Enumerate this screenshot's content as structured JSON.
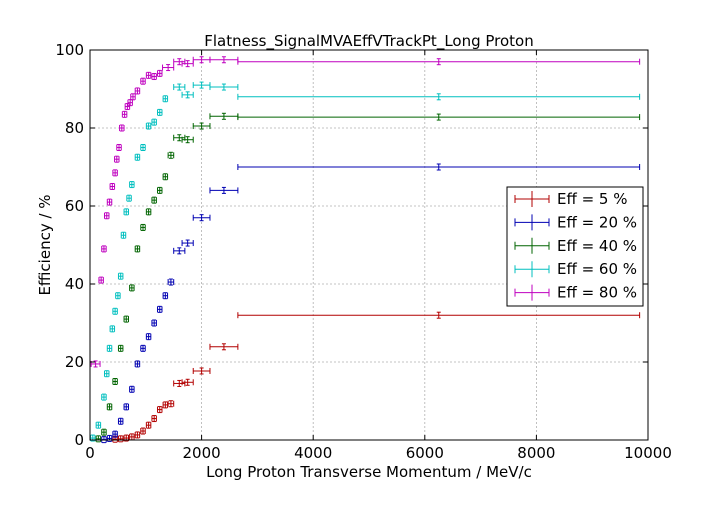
{
  "chart_data": {
    "type": "scatter",
    "title": "Flatness_SignalMVAEffVTrackPt_Long Proton",
    "xlabel": "Long Proton Transverse Momentum / MeV/c",
    "ylabel": "Efficiency / %",
    "xlim": [
      0,
      10000
    ],
    "ylim": [
      0,
      100
    ],
    "xticks": [
      0,
      2000,
      4000,
      6000,
      8000,
      10000
    ],
    "yticks": [
      0,
      20,
      40,
      60,
      80,
      100
    ],
    "grid": true,
    "legend_position": "center-right",
    "series": [
      {
        "name": "Eff = 5 %",
        "color": "#b20000",
        "points": [
          {
            "x": 450,
            "y": 0.2,
            "xerr": 40
          },
          {
            "x": 550,
            "y": 0.3,
            "xerr": 40
          },
          {
            "x": 650,
            "y": 0.5,
            "xerr": 40
          },
          {
            "x": 750,
            "y": 0.8,
            "xerr": 40
          },
          {
            "x": 850,
            "y": 1.3,
            "xerr": 40
          },
          {
            "x": 950,
            "y": 2.3,
            "xerr": 40
          },
          {
            "x": 1050,
            "y": 3.8,
            "xerr": 40
          },
          {
            "x": 1150,
            "y": 5.5,
            "xerr": 40
          },
          {
            "x": 1250,
            "y": 7.8,
            "xerr": 40
          },
          {
            "x": 1350,
            "y": 9.0,
            "xerr": 40
          },
          {
            "x": 1450,
            "y": 9.3,
            "xerr": 50
          },
          {
            "x": 1600,
            "y": 14.5,
            "xerr": 100
          },
          {
            "x": 1750,
            "y": 14.8,
            "xerr": 100
          },
          {
            "x": 2000,
            "y": 17.7,
            "xerr": 150
          },
          {
            "x": 2400,
            "y": 23.9,
            "xerr": 250
          },
          {
            "x": 6250,
            "y": 32.0,
            "xerr": 3600
          }
        ]
      },
      {
        "name": "Eff = 20 %",
        "color": "#0000b2",
        "points": [
          {
            "x": 250,
            "y": 0.1,
            "xerr": 40
          },
          {
            "x": 350,
            "y": 0.4,
            "xerr": 40
          },
          {
            "x": 450,
            "y": 1.5,
            "xerr": 40
          },
          {
            "x": 550,
            "y": 4.8,
            "xerr": 40
          },
          {
            "x": 650,
            "y": 8.5,
            "xerr": 40
          },
          {
            "x": 750,
            "y": 13.0,
            "xerr": 40
          },
          {
            "x": 850,
            "y": 19.5,
            "xerr": 40
          },
          {
            "x": 950,
            "y": 23.5,
            "xerr": 40
          },
          {
            "x": 1050,
            "y": 26.5,
            "xerr": 40
          },
          {
            "x": 1150,
            "y": 30.0,
            "xerr": 40
          },
          {
            "x": 1250,
            "y": 33.5,
            "xerr": 40
          },
          {
            "x": 1350,
            "y": 37.0,
            "xerr": 40
          },
          {
            "x": 1450,
            "y": 40.5,
            "xerr": 50
          },
          {
            "x": 1600,
            "y": 48.5,
            "xerr": 100
          },
          {
            "x": 1750,
            "y": 50.5,
            "xerr": 100
          },
          {
            "x": 2000,
            "y": 57.0,
            "xerr": 150
          },
          {
            "x": 2400,
            "y": 64.0,
            "xerr": 250
          },
          {
            "x": 6250,
            "y": 70.0,
            "xerr": 3600
          }
        ]
      },
      {
        "name": "Eff = 40 %",
        "color": "#006400",
        "points": [
          {
            "x": 150,
            "y": 0.3,
            "xerr": 40
          },
          {
            "x": 250,
            "y": 2.0,
            "xerr": 40
          },
          {
            "x": 350,
            "y": 8.5,
            "xerr": 40
          },
          {
            "x": 450,
            "y": 15.0,
            "xerr": 40
          },
          {
            "x": 550,
            "y": 23.5,
            "xerr": 40
          },
          {
            "x": 650,
            "y": 31.0,
            "xerr": 40
          },
          {
            "x": 750,
            "y": 39.0,
            "xerr": 40
          },
          {
            "x": 850,
            "y": 49.0,
            "xerr": 40
          },
          {
            "x": 950,
            "y": 54.5,
            "xerr": 40
          },
          {
            "x": 1050,
            "y": 58.5,
            "xerr": 40
          },
          {
            "x": 1150,
            "y": 61.5,
            "xerr": 40
          },
          {
            "x": 1250,
            "y": 64.0,
            "xerr": 40
          },
          {
            "x": 1350,
            "y": 67.5,
            "xerr": 40
          },
          {
            "x": 1450,
            "y": 73.0,
            "xerr": 50
          },
          {
            "x": 1600,
            "y": 77.5,
            "xerr": 100
          },
          {
            "x": 1750,
            "y": 77.0,
            "xerr": 100
          },
          {
            "x": 2000,
            "y": 80.5,
            "xerr": 150
          },
          {
            "x": 2400,
            "y": 83.0,
            "xerr": 250
          },
          {
            "x": 6250,
            "y": 82.8,
            "xerr": 3600
          }
        ]
      },
      {
        "name": "Eff = 60 %",
        "color": "#00bfbf",
        "points": [
          {
            "x": 50,
            "y": 0.5,
            "xerr": 40
          },
          {
            "x": 150,
            "y": 3.8,
            "xerr": 40
          },
          {
            "x": 250,
            "y": 11.0,
            "xerr": 40
          },
          {
            "x": 300,
            "y": 17.0,
            "xerr": 40
          },
          {
            "x": 350,
            "y": 23.5,
            "xerr": 40
          },
          {
            "x": 400,
            "y": 28.5,
            "xerr": 40
          },
          {
            "x": 450,
            "y": 33.0,
            "xerr": 40
          },
          {
            "x": 500,
            "y": 37.0,
            "xerr": 40
          },
          {
            "x": 550,
            "y": 42.0,
            "xerr": 40
          },
          {
            "x": 600,
            "y": 52.5,
            "xerr": 40
          },
          {
            "x": 650,
            "y": 58.5,
            "xerr": 40
          },
          {
            "x": 700,
            "y": 62.0,
            "xerr": 40
          },
          {
            "x": 750,
            "y": 65.5,
            "xerr": 40
          },
          {
            "x": 850,
            "y": 72.5,
            "xerr": 40
          },
          {
            "x": 950,
            "y": 75.0,
            "xerr": 40
          },
          {
            "x": 1050,
            "y": 80.5,
            "xerr": 40
          },
          {
            "x": 1150,
            "y": 81.5,
            "xerr": 40
          },
          {
            "x": 1250,
            "y": 84.0,
            "xerr": 40
          },
          {
            "x": 1350,
            "y": 87.5,
            "xerr": 40
          },
          {
            "x": 1600,
            "y": 90.5,
            "xerr": 100
          },
          {
            "x": 1750,
            "y": 88.5,
            "xerr": 100
          },
          {
            "x": 2000,
            "y": 91.0,
            "xerr": 150
          },
          {
            "x": 2400,
            "y": 90.5,
            "xerr": 250
          },
          {
            "x": 6250,
            "y": 88.0,
            "xerr": 3600
          }
        ]
      },
      {
        "name": "Eff = 80 %",
        "color": "#bf00bf",
        "points": [
          {
            "x": 100,
            "y": 19.5,
            "xerr": 80
          },
          {
            "x": 200,
            "y": 41.0,
            "xerr": 40
          },
          {
            "x": 250,
            "y": 49.0,
            "xerr": 40
          },
          {
            "x": 300,
            "y": 57.5,
            "xerr": 40
          },
          {
            "x": 350,
            "y": 61.0,
            "xerr": 40
          },
          {
            "x": 400,
            "y": 65.0,
            "xerr": 40
          },
          {
            "x": 450,
            "y": 68.5,
            "xerr": 40
          },
          {
            "x": 480,
            "y": 72.0,
            "xerr": 40
          },
          {
            "x": 520,
            "y": 75.0,
            "xerr": 40
          },
          {
            "x": 570,
            "y": 80.0,
            "xerr": 40
          },
          {
            "x": 620,
            "y": 83.5,
            "xerr": 40
          },
          {
            "x": 670,
            "y": 85.5,
            "xerr": 40
          },
          {
            "x": 720,
            "y": 86.5,
            "xerr": 40
          },
          {
            "x": 770,
            "y": 88.0,
            "xerr": 40
          },
          {
            "x": 850,
            "y": 89.5,
            "xerr": 40
          },
          {
            "x": 950,
            "y": 92.0,
            "xerr": 40
          },
          {
            "x": 1050,
            "y": 93.5,
            "xerr": 40
          },
          {
            "x": 1150,
            "y": 93.2,
            "xerr": 40
          },
          {
            "x": 1250,
            "y": 94.0,
            "xerr": 40
          },
          {
            "x": 1400,
            "y": 95.5,
            "xerr": 100
          },
          {
            "x": 1600,
            "y": 97.0,
            "xerr": 100
          },
          {
            "x": 1750,
            "y": 96.5,
            "xerr": 100
          },
          {
            "x": 2000,
            "y": 97.5,
            "xerr": 150
          },
          {
            "x": 2400,
            "y": 97.5,
            "xerr": 250
          },
          {
            "x": 6250,
            "y": 97.0,
            "xerr": 3600
          }
        ]
      }
    ]
  }
}
